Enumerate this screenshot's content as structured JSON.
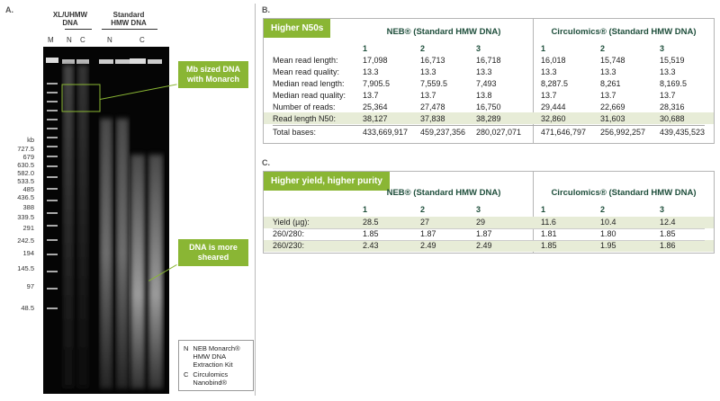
{
  "panel_a": {
    "letter": "A.",
    "header_xl": "XL/UHMW\nDNA",
    "header_std": "Standard\nHMW DNA",
    "lane_labels": [
      "M",
      "N",
      "C",
      "N",
      "C"
    ],
    "kb_unit": "kb",
    "kb_ladder": [
      "727.5",
      "679",
      "630.5",
      "582.0",
      "533.5",
      "485",
      "436.5",
      "388",
      "339.5",
      "291",
      "242.5",
      "194",
      "145.5",
      "97",
      "48.5"
    ],
    "callout_mb": "Mb sized DNA\nwith Monarch",
    "callout_sheared": "DNA is more\nsheared",
    "legend": {
      "n_key": "N",
      "n_text": "NEB Monarch®\nHMW DNA\nExtraction Kit",
      "c_key": "C",
      "c_text": "Circulomics\nNanobind®"
    }
  },
  "panel_b": {
    "letter": "B.",
    "title": "Higher N50s",
    "group_neb": "NEB® (Standard HMW DNA)",
    "group_circ": "Circulomics® (Standard HMW DNA)",
    "col_nums": [
      "1",
      "2",
      "3"
    ],
    "rows": [
      {
        "label": "Mean read length:",
        "neb": [
          "17,098",
          "16,713",
          "16,718"
        ],
        "circ": [
          "16,018",
          "15,748",
          "15,519"
        ],
        "hl": false
      },
      {
        "label": "Mean read quality:",
        "neb": [
          "13.3",
          "13.3",
          "13.3"
        ],
        "circ": [
          "13.3",
          "13.3",
          "13.3"
        ],
        "hl": false
      },
      {
        "label": "Median read length:",
        "neb": [
          "7,905.5",
          "7,559.5",
          "7,493"
        ],
        "circ": [
          "8,287.5",
          "8,261",
          "8,169.5"
        ],
        "hl": false
      },
      {
        "label": "Median read quality:",
        "neb": [
          "13.7",
          "13.7",
          "13.8"
        ],
        "circ": [
          "13.7",
          "13.7",
          "13.7"
        ],
        "hl": false
      },
      {
        "label": "Number of reads:",
        "neb": [
          "25,364",
          "27,478",
          "16,750"
        ],
        "circ": [
          "29,444",
          "22,669",
          "28,316"
        ],
        "hl": false
      },
      {
        "label": "Read length N50:",
        "neb": [
          "38,127",
          "37,838",
          "38,289"
        ],
        "circ": [
          "32,860",
          "31,603",
          "30,688"
        ],
        "hl": true
      },
      {
        "label": "Total bases:",
        "neb": [
          "433,669,917",
          "459,237,356",
          "280,027,071"
        ],
        "circ": [
          "471,646,797",
          "256,992,257",
          "439,435,523"
        ],
        "hl": false
      }
    ]
  },
  "panel_c": {
    "letter": "C.",
    "title": "Higher yield, higher purity",
    "group_neb": "NEB® (Standard HMW DNA)",
    "group_circ": "Circulomics® (Standard HMW DNA)",
    "col_nums": [
      "1",
      "2",
      "3"
    ],
    "rows": [
      {
        "label": "Yield (µg):",
        "neb": [
          "28.5",
          "27",
          "29"
        ],
        "circ": [
          "11.6",
          "10.4",
          "12.4"
        ],
        "hl": true
      },
      {
        "label": "260/280:",
        "neb": [
          "1.85",
          "1.87",
          "1.87"
        ],
        "circ": [
          "1.81",
          "1.80",
          "1.85"
        ],
        "hl": false
      },
      {
        "label": "260/230:",
        "neb": [
          "2.43",
          "2.49",
          "2.49"
        ],
        "circ": [
          "1.85",
          "1.95",
          "1.86"
        ],
        "hl": true
      }
    ]
  },
  "colors": {
    "accent_green": "#8ab634",
    "header_green": "#1e4e3b",
    "highlight_row": "#e7ecd7"
  }
}
